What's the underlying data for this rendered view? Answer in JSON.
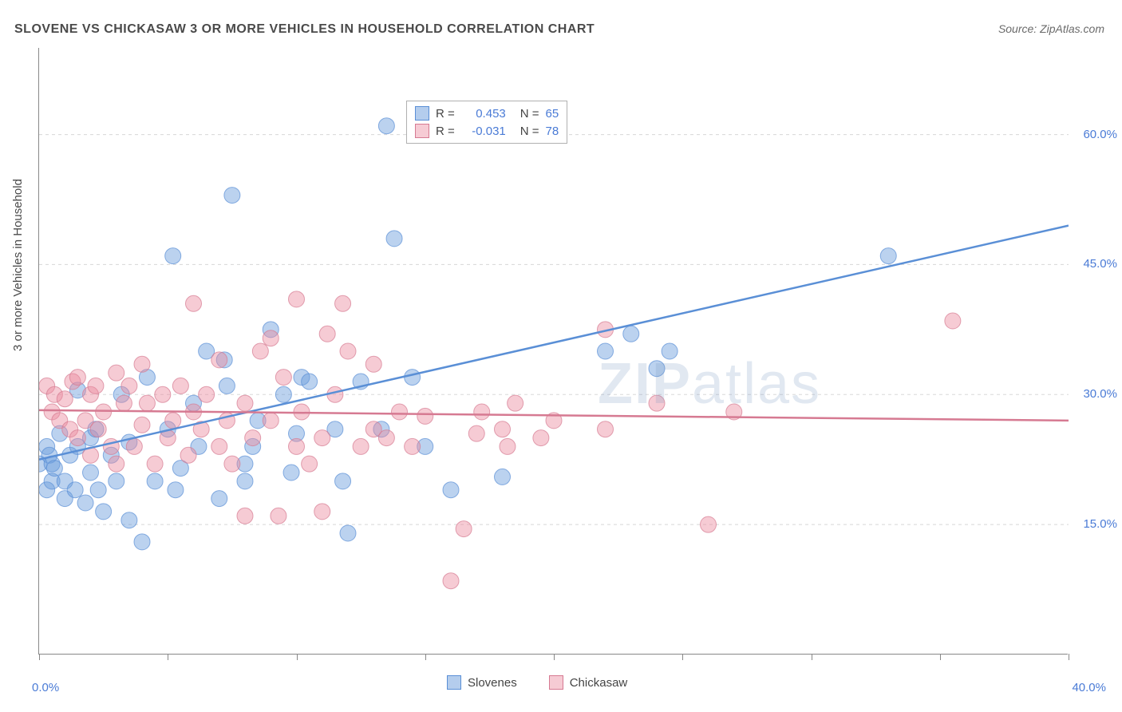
{
  "title": "SLOVENE VS CHICKASAW 3 OR MORE VEHICLES IN HOUSEHOLD CORRELATION CHART",
  "source_label": "Source: ZipAtlas.com",
  "y_axis_title": "3 or more Vehicles in Household",
  "watermark": {
    "bold": "ZIP",
    "rest": "atlas"
  },
  "chart": {
    "type": "scatter",
    "background_color": "#ffffff",
    "grid_color": "#d8d8d8",
    "axis_color": "#888888",
    "text_color": "#4a4a4a",
    "value_color": "#4a7bd6",
    "xlim": [
      0,
      40
    ],
    "ylim": [
      0,
      70
    ],
    "x_tick_positions": [
      0,
      5,
      10,
      15,
      20,
      25,
      30,
      35,
      40
    ],
    "x_tick_labels": {
      "0": "0.0%",
      "40": "40.0%"
    },
    "y_tick_positions": [
      15,
      30,
      45,
      60
    ],
    "y_tick_labels": {
      "15": "15.0%",
      "30": "30.0%",
      "45": "45.0%",
      "60": "60.0%"
    },
    "marker_radius": 10,
    "marker_opacity": 0.45,
    "line_width": 2.5,
    "series": [
      {
        "name": "Slovenes",
        "color_fill": "#699bdb",
        "color_stroke": "#5a8fd6",
        "R": "0.453",
        "N": "65",
        "trend": {
          "x1": 0,
          "y1": 22.5,
          "x2": 40,
          "y2": 49.5
        },
        "points": [
          [
            0,
            22
          ],
          [
            0.3,
            24
          ],
          [
            0.3,
            19
          ],
          [
            0.4,
            23
          ],
          [
            0.5,
            22
          ],
          [
            0.5,
            20
          ],
          [
            0.6,
            21.5
          ],
          [
            0.8,
            25.5
          ],
          [
            1,
            20
          ],
          [
            1,
            18
          ],
          [
            1.2,
            23
          ],
          [
            1.4,
            19
          ],
          [
            1.5,
            30.5
          ],
          [
            1.5,
            24
          ],
          [
            1.8,
            17.5
          ],
          [
            2,
            25
          ],
          [
            2,
            21
          ],
          [
            2.2,
            26
          ],
          [
            2.3,
            19
          ],
          [
            2.5,
            16.5
          ],
          [
            2.8,
            23
          ],
          [
            3,
            20
          ],
          [
            3.2,
            30
          ],
          [
            3.5,
            24.5
          ],
          [
            3.5,
            15.5
          ],
          [
            4,
            13
          ],
          [
            4.2,
            32
          ],
          [
            4.5,
            20
          ],
          [
            5,
            26
          ],
          [
            5.2,
            46
          ],
          [
            5.3,
            19
          ],
          [
            5.5,
            21.5
          ],
          [
            6,
            29
          ],
          [
            6.2,
            24
          ],
          [
            6.5,
            35
          ],
          [
            7,
            18
          ],
          [
            7.2,
            34
          ],
          [
            7.3,
            31
          ],
          [
            7.5,
            53
          ],
          [
            8,
            22
          ],
          [
            8,
            20
          ],
          [
            8.3,
            24
          ],
          [
            8.5,
            27
          ],
          [
            9,
            37.5
          ],
          [
            9.5,
            30
          ],
          [
            9.8,
            21
          ],
          [
            10,
            25.5
          ],
          [
            10.2,
            32
          ],
          [
            10.5,
            31.5
          ],
          [
            11.5,
            26
          ],
          [
            11.8,
            20
          ],
          [
            12,
            14
          ],
          [
            12.5,
            31.5
          ],
          [
            13.3,
            26
          ],
          [
            13.5,
            61
          ],
          [
            13.8,
            48
          ],
          [
            14.5,
            32
          ],
          [
            15,
            24
          ],
          [
            16,
            19
          ],
          [
            18,
            20.5
          ],
          [
            22,
            35
          ],
          [
            23,
            37
          ],
          [
            24,
            33
          ],
          [
            24.5,
            35
          ],
          [
            33,
            46
          ]
        ]
      },
      {
        "name": "Chickasaw",
        "color_fill": "#eb8ca0",
        "color_stroke": "#d67a92",
        "R": "-0.031",
        "N": "78",
        "trend": {
          "x1": 0,
          "y1": 28.2,
          "x2": 40,
          "y2": 27.0
        },
        "points": [
          [
            0.3,
            31
          ],
          [
            0.5,
            28
          ],
          [
            0.6,
            30
          ],
          [
            0.8,
            27
          ],
          [
            1,
            29.5
          ],
          [
            1.2,
            26
          ],
          [
            1.3,
            31.5
          ],
          [
            1.5,
            25
          ],
          [
            1.5,
            32
          ],
          [
            1.8,
            27
          ],
          [
            2,
            30
          ],
          [
            2,
            23
          ],
          [
            2.2,
            31
          ],
          [
            2.3,
            26
          ],
          [
            2.5,
            28
          ],
          [
            2.8,
            24
          ],
          [
            3,
            32.5
          ],
          [
            3,
            22
          ],
          [
            3.3,
            29
          ],
          [
            3.5,
            31
          ],
          [
            3.7,
            24
          ],
          [
            4,
            26.5
          ],
          [
            4,
            33.5
          ],
          [
            4.2,
            29
          ],
          [
            4.5,
            22
          ],
          [
            4.8,
            30
          ],
          [
            5,
            25
          ],
          [
            5.2,
            27
          ],
          [
            5.5,
            31
          ],
          [
            5.8,
            23
          ],
          [
            6,
            28
          ],
          [
            6,
            40.5
          ],
          [
            6.3,
            26
          ],
          [
            6.5,
            30
          ],
          [
            7,
            24
          ],
          [
            7,
            34
          ],
          [
            7.3,
            27
          ],
          [
            7.5,
            22
          ],
          [
            8,
            16
          ],
          [
            8,
            29
          ],
          [
            8.3,
            25
          ],
          [
            8.6,
            35
          ],
          [
            9,
            36.5
          ],
          [
            9,
            27
          ],
          [
            9.3,
            16
          ],
          [
            9.5,
            32
          ],
          [
            10,
            41
          ],
          [
            10,
            24
          ],
          [
            10.2,
            28
          ],
          [
            10.5,
            22
          ],
          [
            11,
            16.5
          ],
          [
            11,
            25
          ],
          [
            11.2,
            37
          ],
          [
            11.5,
            30
          ],
          [
            11.8,
            40.5
          ],
          [
            12,
            35
          ],
          [
            12.5,
            24
          ],
          [
            13,
            26
          ],
          [
            13,
            33.5
          ],
          [
            13.5,
            25
          ],
          [
            14,
            28
          ],
          [
            14.5,
            24
          ],
          [
            15,
            27.5
          ],
          [
            16,
            8.5
          ],
          [
            16.5,
            14.5
          ],
          [
            17,
            25.5
          ],
          [
            17.2,
            28
          ],
          [
            18,
            26
          ],
          [
            18.2,
            24
          ],
          [
            18.5,
            29
          ],
          [
            19.5,
            25
          ],
          [
            20,
            27
          ],
          [
            22,
            37.5
          ],
          [
            22,
            26
          ],
          [
            24,
            29
          ],
          [
            26,
            15
          ],
          [
            27,
            28
          ],
          [
            35.5,
            38.5
          ]
        ]
      }
    ],
    "legend_bottom": [
      {
        "label": "Slovenes",
        "swatch": "blue"
      },
      {
        "label": "Chickasaw",
        "swatch": "pink"
      }
    ]
  }
}
